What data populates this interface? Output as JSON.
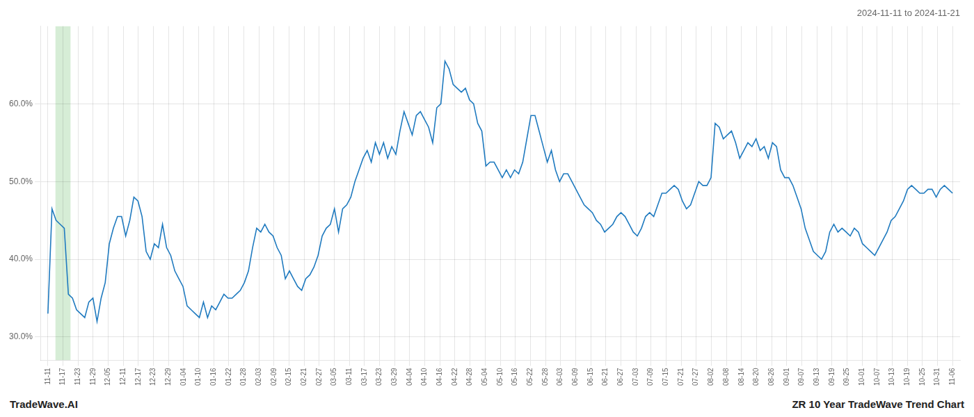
{
  "chart_data": {
    "type": "line",
    "title": "2024-11-11 to 2024-11-21",
    "color": "#1f7abf",
    "grid": true,
    "xlim": [
      -0.5,
      60.5
    ],
    "xticks": [
      {
        "value": 0,
        "label": "11-11"
      },
      {
        "value": 1,
        "label": "11-17"
      },
      {
        "value": 2,
        "label": "11-23"
      },
      {
        "value": 3,
        "label": "11-29"
      },
      {
        "value": 4,
        "label": "12-05"
      },
      {
        "value": 5,
        "label": "12-11"
      },
      {
        "value": 6,
        "label": "12-17"
      },
      {
        "value": 7,
        "label": "12-23"
      },
      {
        "value": 8,
        "label": "12-29"
      },
      {
        "value": 9,
        "label": "01-04"
      },
      {
        "value": 10,
        "label": "01-10"
      },
      {
        "value": 11,
        "label": "01-16"
      },
      {
        "value": 12,
        "label": "01-22"
      },
      {
        "value": 13,
        "label": "01-28"
      },
      {
        "value": 14,
        "label": "02-03"
      },
      {
        "value": 15,
        "label": "02-09"
      },
      {
        "value": 16,
        "label": "02-15"
      },
      {
        "value": 17,
        "label": "02-21"
      },
      {
        "value": 18,
        "label": "02-27"
      },
      {
        "value": 19,
        "label": "03-05"
      },
      {
        "value": 20,
        "label": "03-11"
      },
      {
        "value": 21,
        "label": "03-17"
      },
      {
        "value": 22,
        "label": "03-23"
      },
      {
        "value": 23,
        "label": "03-29"
      },
      {
        "value": 24,
        "label": "04-04"
      },
      {
        "value": 25,
        "label": "04-10"
      },
      {
        "value": 26,
        "label": "04-16"
      },
      {
        "value": 27,
        "label": "04-22"
      },
      {
        "value": 28,
        "label": "04-28"
      },
      {
        "value": 29,
        "label": "05-04"
      },
      {
        "value": 30,
        "label": "05-10"
      },
      {
        "value": 31,
        "label": "05-16"
      },
      {
        "value": 32,
        "label": "05-22"
      },
      {
        "value": 33,
        "label": "05-28"
      },
      {
        "value": 34,
        "label": "06-03"
      },
      {
        "value": 35,
        "label": "06-09"
      },
      {
        "value": 36,
        "label": "06-15"
      },
      {
        "value": 37,
        "label": "06-21"
      },
      {
        "value": 38,
        "label": "06-27"
      },
      {
        "value": 39,
        "label": "07-03"
      },
      {
        "value": 40,
        "label": "07-09"
      },
      {
        "value": 41,
        "label": "07-15"
      },
      {
        "value": 42,
        "label": "07-21"
      },
      {
        "value": 43,
        "label": "07-27"
      },
      {
        "value": 44,
        "label": "08-02"
      },
      {
        "value": 45,
        "label": "08-08"
      },
      {
        "value": 46,
        "label": "08-14"
      },
      {
        "value": 47,
        "label": "08-20"
      },
      {
        "value": 48,
        "label": "08-26"
      },
      {
        "value": 49,
        "label": "09-01"
      },
      {
        "value": 50,
        "label": "09-07"
      },
      {
        "value": 51,
        "label": "09-13"
      },
      {
        "value": 52,
        "label": "09-19"
      },
      {
        "value": 53,
        "label": "09-25"
      },
      {
        "value": 54,
        "label": "10-01"
      },
      {
        "value": 55,
        "label": "10-07"
      },
      {
        "value": 56,
        "label": "10-13"
      },
      {
        "value": 57,
        "label": "10-19"
      },
      {
        "value": 58,
        "label": "10-25"
      },
      {
        "value": 59,
        "label": "10-31"
      },
      {
        "value": 60,
        "label": "11-06"
      }
    ],
    "ylim": [
      27.0,
      70.0
    ],
    "yticks": [
      {
        "value": 30.0,
        "label": "30.0%"
      },
      {
        "value": 40.0,
        "label": "40.0%"
      },
      {
        "value": 50.0,
        "label": "50.0%"
      },
      {
        "value": 60.0,
        "label": "60.0%"
      }
    ],
    "annotations": [
      {
        "text": "TradeWave.AI"
      },
      {
        "text": "ZR 10 Year TradeWave Trend Chart"
      },
      {
        "x": [
          0.5,
          1.5
        ],
        "color": "#d6edd6"
      }
    ],
    "x": [
      0,
      0.2715,
      0.543,
      0.8145,
      1.086,
      1.3575,
      1.629,
      1.9005,
      2.1719,
      2.4434,
      2.7149,
      2.9864,
      3.2579,
      3.5294,
      3.8009,
      4.0724,
      4.3439,
      4.6154,
      4.8869,
      5.1584,
      5.4299,
      5.7014,
      5.9729,
      6.2443,
      6.5158,
      6.7873,
      7.0588,
      7.3303,
      7.6018,
      7.8733,
      8.1448,
      8.4163,
      8.6878,
      8.9593,
      9.2308,
      9.5023,
      9.7738,
      10.0452,
      10.3167,
      10.5882,
      10.8597,
      11.1312,
      11.4027,
      11.6742,
      11.9457,
      12.2172,
      12.4887,
      12.7602,
      13.0317,
      13.3032,
      13.5747,
      13.8462,
      14.1176,
      14.3891,
      14.6606,
      14.9321,
      15.2036,
      15.4751,
      15.7466,
      16.0181,
      16.2896,
      16.5611,
      16.8326,
      17.1041,
      17.3756,
      17.6471,
      17.9186,
      18.19,
      18.4615,
      18.733,
      19.0045,
      19.276,
      19.5475,
      19.819,
      20.0905,
      20.362,
      20.6335,
      20.905,
      21.1765,
      21.448,
      21.7195,
      21.991,
      22.2624,
      22.5339,
      22.8054,
      23.0769,
      23.3484,
      23.6199,
      23.8914,
      24.1629,
      24.4344,
      24.7059,
      24.9774,
      25.2489,
      25.5204,
      25.7919,
      26.0633,
      26.3348,
      26.6063,
      26.8778,
      27.1493,
      27.4208,
      27.6923,
      27.9638,
      28.2353,
      28.5068,
      28.7783,
      29.0498,
      29.3213,
      29.5928,
      29.8643,
      30.1357,
      30.4072,
      30.6787,
      30.9502,
      31.2217,
      31.4932,
      31.7647,
      32.0362,
      32.3077,
      32.5792,
      32.8507,
      33.1222,
      33.3937,
      33.6652,
      33.9367,
      34.2081,
      34.4796,
      34.7511,
      35.0226,
      35.2941,
      35.5656,
      35.8371,
      36.1086,
      36.3801,
      36.6516,
      36.9231,
      37.1946,
      37.4661,
      37.7376,
      38.009,
      38.2805,
      38.552,
      38.8235,
      39.095,
      39.3665,
      39.638,
      39.9095,
      40.181,
      40.4525,
      40.724,
      40.9955,
      41.267,
      41.5385,
      41.81,
      42.0814,
      42.3529,
      42.6244,
      42.8959,
      43.1674,
      43.4389,
      43.7104,
      43.9819,
      44.2534,
      44.5249,
      44.7964,
      45.0679,
      45.3394,
      45.6109,
      45.8824,
      46.1538,
      46.4253,
      46.6968,
      46.9683,
      47.2398,
      47.5113,
      47.7828,
      48.0543,
      48.3258,
      48.5973,
      48.8688,
      49.1403,
      49.4118,
      49.6833,
      49.9548,
      50.2262,
      50.4977,
      50.7692,
      51.0407,
      51.3122,
      51.5837,
      51.8552,
      52.1267,
      52.3982,
      52.6697,
      52.9412,
      53.2127,
      53.4842,
      53.7557,
      54.0271,
      54.2986,
      54.5701,
      54.8416,
      55.1131,
      55.3846,
      55.6561,
      55.9276,
      56.1991,
      56.4706,
      56.7421,
      57.0136,
      57.2851,
      57.5566,
      57.8281,
      58.0995,
      58.371,
      58.6425,
      58.914,
      59.1855,
      59.457,
      59.7285,
      60
    ],
    "values": [
      33.0,
      46.5,
      45.0,
      44.5,
      44.0,
      35.5,
      35.0,
      33.5,
      33.0,
      32.5,
      34.5,
      35.0,
      32.0,
      35.0,
      37.0,
      42.0,
      44.0,
      45.5,
      45.5,
      43.0,
      45.0,
      48.0,
      47.5,
      45.5,
      41.0,
      40.0,
      42.0,
      41.5,
      44.5,
      41.5,
      40.5,
      38.5,
      37.5,
      36.5,
      34.0,
      33.5,
      33.0,
      32.5,
      34.5,
      32.5,
      34.0,
      33.5,
      34.5,
      35.5,
      35.0,
      35.0,
      35.5,
      36.0,
      37.0,
      38.5,
      41.5,
      44.0,
      43.5,
      44.5,
      43.5,
      43.0,
      41.5,
      40.5,
      37.5,
      38.5,
      37.5,
      36.5,
      36.0,
      37.5,
      38.0,
      39.0,
      40.5,
      43.0,
      44.0,
      44.5,
      46.5,
      43.5,
      46.5,
      47.0,
      48.0,
      50.0,
      51.5,
      53.0,
      54.0,
      52.5,
      55.0,
      53.5,
      55.0,
      53.0,
      54.5,
      53.5,
      56.5,
      59.0,
      57.5,
      56.0,
      58.5,
      59.0,
      58.0,
      57.0,
      55.0,
      59.5,
      60.0,
      65.5,
      64.5,
      62.5,
      62.0,
      61.5,
      62.0,
      60.5,
      60.0,
      57.5,
      56.5,
      52.0,
      52.5,
      52.5,
      51.5,
      50.5,
      51.5,
      50.5,
      51.5,
      51.0,
      52.5,
      55.5,
      58.5,
      58.5,
      56.5,
      54.5,
      52.5,
      54.0,
      51.5,
      50.0,
      51.0,
      51.0,
      50.0,
      49.0,
      48.0,
      47.0,
      46.5,
      46.0,
      45.0,
      44.5,
      43.5,
      44.0,
      44.5,
      45.5,
      46.0,
      45.5,
      44.5,
      43.5,
      43.0,
      44.0,
      45.5,
      46.0,
      45.5,
      47.0,
      48.5,
      48.5,
      49.0,
      49.5,
      49.0,
      47.5,
      46.5,
      47.0,
      48.5,
      50.0,
      49.5,
      49.5,
      50.5,
      57.5,
      57.0,
      55.5,
      56.0,
      56.5,
      55.0,
      53.0,
      54.0,
      55.0,
      54.5,
      55.5,
      54.0,
      54.5,
      53.0,
      55.0,
      54.5,
      51.5,
      50.5,
      50.5,
      49.5,
      48.0,
      46.5,
      44.0,
      42.5,
      41.0,
      40.5,
      40.0,
      41.0,
      43.5,
      44.5,
      43.5,
      44.0,
      43.5,
      43.0,
      44.0,
      43.5,
      42.0,
      41.5,
      41.0,
      40.5,
      41.5,
      42.5,
      43.5,
      45.0,
      45.5,
      46.5,
      47.5,
      49.0,
      49.5,
      49.0,
      48.5,
      48.5,
      49.0,
      49.0,
      48.0,
      49.0,
      49.5,
      49.0,
      48.5
    ]
  }
}
